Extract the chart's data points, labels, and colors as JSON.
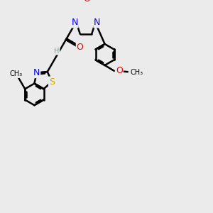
{
  "background_color": "#ebebeb",
  "bond_color": "#000000",
  "bond_width": 1.8,
  "atom_colors": {
    "N": "#0000ee",
    "O": "#ee0000",
    "S": "#ccaa00",
    "H": "#7a9a9a",
    "C": "#000000"
  },
  "font_size": 8,
  "figsize": [
    3.0,
    3.0
  ],
  "dpi": 100
}
